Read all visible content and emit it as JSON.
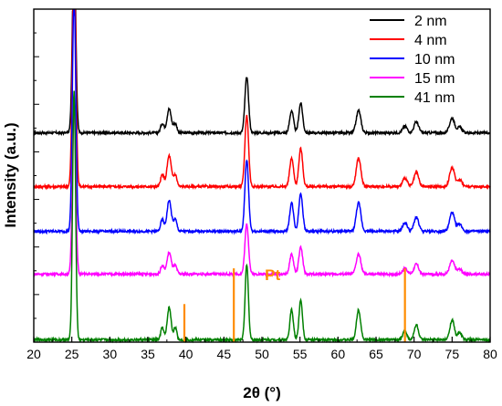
{
  "chart_data": {
    "type": "line",
    "title": "",
    "xlabel": "2θ (°)",
    "ylabel": "Intensity (a.u.)",
    "xlim": [
      20,
      80
    ],
    "xticks": [
      "20",
      "25",
      "30",
      "35",
      "40",
      "45",
      "50",
      "55",
      "60",
      "65",
      "70",
      "75",
      "80"
    ],
    "y_tick_labels_shown": false,
    "legend_position": "top-right",
    "offset_stacked": true,
    "series": [
      {
        "name": "2 nm",
        "color": "#000000",
        "baseline": 4.4,
        "scale": 0.78
      },
      {
        "name": "4 nm",
        "color": "#ff0000",
        "baseline": 3.27,
        "scale": 1.0
      },
      {
        "name": "10 nm",
        "color": "#0000ff",
        "baseline": 2.33,
        "scale": 1.0
      },
      {
        "name": "15 nm",
        "color": "#ff00ff",
        "baseline": 1.43,
        "scale": 0.7
      },
      {
        "name": "41 nm",
        "color": "#008000",
        "baseline": 0.05,
        "scale": 1.05
      }
    ],
    "peaks": [
      {
        "pos": 25.3,
        "height": 5.0,
        "width": 0.22
      },
      {
        "pos": 36.9,
        "height": 0.25,
        "width": 0.22
      },
      {
        "pos": 37.8,
        "height": 0.65,
        "width": 0.28
      },
      {
        "pos": 38.6,
        "height": 0.25,
        "width": 0.22
      },
      {
        "pos": 48.0,
        "height": 1.5,
        "width": 0.24
      },
      {
        "pos": 53.9,
        "height": 0.6,
        "width": 0.25
      },
      {
        "pos": 55.1,
        "height": 0.8,
        "width": 0.25
      },
      {
        "pos": 62.7,
        "height": 0.6,
        "width": 0.3
      },
      {
        "pos": 68.8,
        "height": 0.18,
        "width": 0.3
      },
      {
        "pos": 70.3,
        "height": 0.3,
        "width": 0.3
      },
      {
        "pos": 75.0,
        "height": 0.4,
        "width": 0.32
      },
      {
        "pos": 76.0,
        "height": 0.15,
        "width": 0.3
      }
    ],
    "reference": {
      "label": "Pt",
      "color": "#ff8c00",
      "lines": [
        {
          "x": 39.8,
          "height": 0.8
        },
        {
          "x": 46.3,
          "height": 1.55
        },
        {
          "x": 68.8,
          "height": 1.55
        }
      ]
    }
  }
}
